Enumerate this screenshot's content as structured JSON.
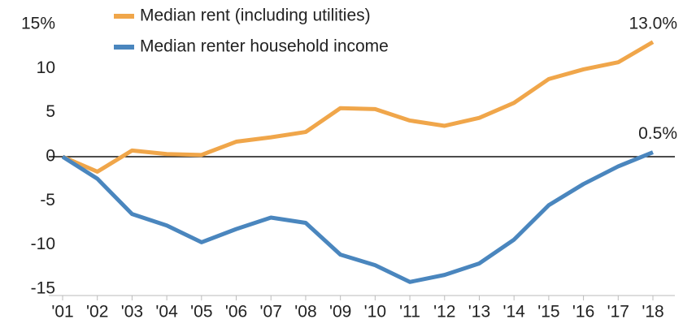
{
  "chart_data": {
    "type": "line",
    "categories": [
      "'01",
      "'02",
      "'03",
      "'04",
      "'05",
      "'06",
      "'07",
      "'08",
      "'09",
      "'10",
      "'11",
      "'12",
      "'13",
      "'14",
      "'15",
      "'16",
      "'17",
      "'18"
    ],
    "series": [
      {
        "name": "Median rent (including utilities)",
        "color": "#f0a64a",
        "values": [
          0,
          -1.7,
          0.7,
          0.3,
          0.2,
          1.7,
          2.2,
          2.8,
          5.5,
          5.4,
          4.1,
          3.5,
          4.4,
          6.1,
          8.8,
          9.9,
          10.7,
          13.0
        ],
        "value_labels": [
          null,
          null,
          null,
          null,
          null,
          null,
          null,
          null,
          null,
          null,
          null,
          null,
          null,
          null,
          null,
          null,
          null,
          "13.0%"
        ]
      },
      {
        "name": "Median renter household income",
        "color": "#4a86be",
        "values": [
          0,
          -2.5,
          -6.5,
          -7.8,
          -9.7,
          -8.2,
          -6.9,
          -7.5,
          -11.1,
          -12.3,
          -14.2,
          -13.4,
          -12.1,
          -9.4,
          -5.5,
          -3.1,
          -1.1,
          0.5
        ],
        "value_labels": [
          null,
          null,
          null,
          null,
          null,
          null,
          null,
          null,
          null,
          null,
          null,
          null,
          null,
          null,
          null,
          null,
          null,
          "0.5%"
        ]
      }
    ],
    "ylim": [
      -15,
      15
    ],
    "yticks": [
      -15,
      -10,
      -5,
      0,
      5,
      10,
      {
        "value": 15,
        "label": "15%"
      }
    ],
    "grid": false
  }
}
